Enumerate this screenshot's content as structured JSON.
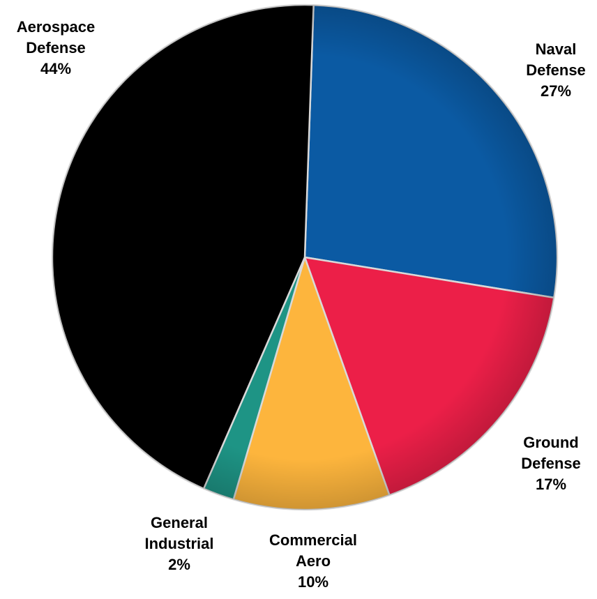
{
  "chart_data": {
    "type": "pie",
    "title": "",
    "slices": [
      {
        "name": "Naval Defense",
        "label_lines": [
          "Naval",
          "Defense"
        ],
        "value_label": "27%",
        "value": 27,
        "color": "#0b5aa3"
      },
      {
        "name": "Ground Defense",
        "label_lines": [
          "Ground",
          "Defense"
        ],
        "value_label": "17%",
        "value": 17,
        "color": "#ec1f48"
      },
      {
        "name": "Commercial Aero",
        "label_lines": [
          "Commercial",
          "Aero"
        ],
        "value_label": "10%",
        "value": 10,
        "color": "#fdb53d"
      },
      {
        "name": "General Industrial",
        "label_lines": [
          "General",
          "Industrial"
        ],
        "value_label": "2%",
        "value": 2,
        "color": "#1e9485"
      },
      {
        "name": "Aerospace Defense",
        "label_lines": [
          "Aerospace",
          "Defense"
        ],
        "value_label": "44%",
        "value": 44,
        "color": "#000000"
      }
    ],
    "legend": "none"
  }
}
